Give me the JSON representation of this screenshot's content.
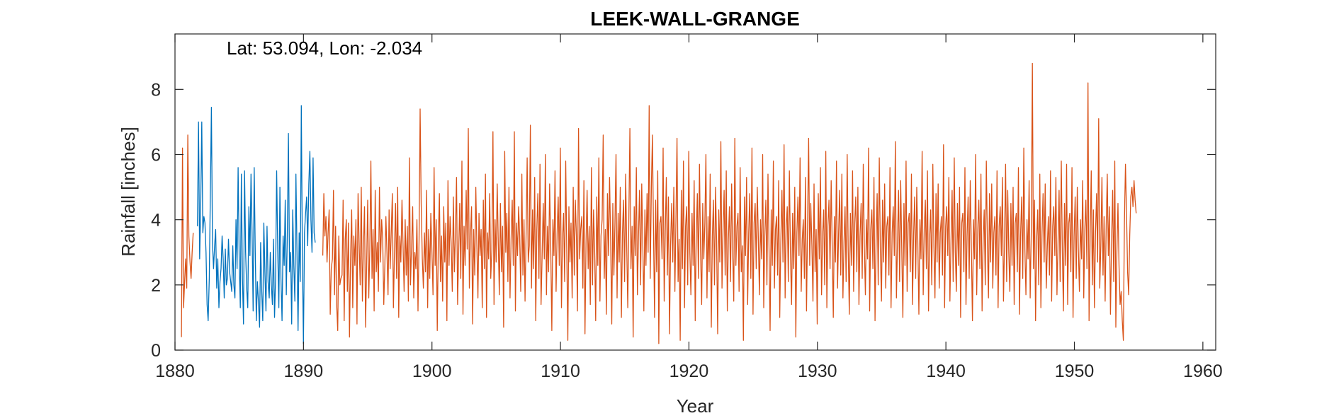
{
  "chart_data": {
    "type": "line",
    "title": "LEEK-WALL-GRANGE",
    "annotation": "Lat: 53.094, Lon: -2.034",
    "xlabel": "Year",
    "ylabel": "Rainfall [inches]",
    "xlim": [
      1880,
      1961
    ],
    "ylim": [
      0,
      9.7
    ],
    "xticks": [
      1880,
      1890,
      1900,
      1910,
      1920,
      1930,
      1940,
      1950,
      1960
    ],
    "yticks": [
      0,
      2,
      4,
      6,
      8
    ],
    "grid": false,
    "legend": "none",
    "resolution": "monthly",
    "series": [
      {
        "color": "#0072BD",
        "x_start": 1881.75,
        "x_step": 0.0833,
        "values": [
          3.8,
          7.0,
          2.8,
          4.4,
          7.0,
          3.6,
          4.1,
          3.9,
          3.0,
          1.4,
          0.9,
          2.2,
          4.8,
          7.45,
          3.3,
          2.5,
          3.2,
          3.7,
          1.9,
          2.8,
          1.3,
          2.1,
          2.5,
          3.5,
          2.8,
          1.6,
          3.1,
          2.0,
          2.2,
          3.4,
          2.4,
          2.1,
          1.8,
          3.2,
          2.0,
          1.6,
          4.0,
          2.5,
          5.6,
          2.7,
          1.3,
          5.4,
          2.2,
          0.8,
          5.5,
          3.0,
          1.9,
          1.3,
          4.4,
          2.9,
          5.4,
          3.6,
          1.2,
          5.6,
          3.0,
          0.9,
          2.1,
          1.5,
          0.7,
          3.3,
          1.8,
          0.9,
          3.9,
          2.4,
          1.2,
          3.8,
          2.1,
          1.6,
          3.0,
          2.0,
          1.4,
          3.4,
          1.0,
          2.2,
          5.5,
          3.1,
          1.3,
          5.0,
          2.2,
          0.9,
          3.5,
          2.6,
          4.6,
          1.7,
          3.6,
          6.65,
          2.4,
          3.0,
          0.8,
          4.3,
          2.6,
          1.5,
          5.4,
          3.0,
          0.6,
          3.6,
          2.1,
          7.5,
          2.9,
          0.2,
          3.6,
          4.2,
          4.7,
          3.2,
          5.1,
          6.1,
          4.0,
          3.0,
          5.9,
          3.6,
          3.3
        ]
      },
      {
        "color": "#D95319",
        "x_start": 1880.5,
        "x_step": 0.0833,
        "values": [
          0.4,
          6.2,
          1.3,
          2.1,
          2.8,
          1.9,
          6.6,
          3.5,
          2.7,
          2.2,
          3.0,
          3.6
        ]
      },
      {
        "color": "#D95319",
        "x_start": 1891.5,
        "x_step": 0.0833,
        "values": [
          2.9,
          4.8,
          3.5,
          4.1,
          2.7,
          3.6,
          4.3,
          1.1,
          2.5,
          2.8,
          4.9,
          1.7,
          3.8,
          1.4,
          0.6,
          3.5,
          2.0,
          2.2,
          2.3,
          4.6,
          0.9,
          3.4,
          4.0,
          1.8,
          3.9,
          0.4,
          2.8,
          4.3,
          1.3,
          3.5,
          2.6,
          4.0,
          0.8,
          4.8,
          3.3,
          2.0,
          5.0,
          1.5,
          3.2,
          4.4,
          0.7,
          2.6,
          4.6,
          1.6,
          3.1,
          5.8,
          2.2,
          3.7,
          1.2,
          4.9,
          2.4,
          3.3,
          1.8,
          5.0,
          2.7,
          4.0,
          3.4,
          1.4,
          2.6,
          4.1,
          3.0,
          1.7,
          4.3,
          2.5,
          3.6,
          4.8,
          1.3,
          3.0,
          4.5,
          2.2,
          5.0,
          1.0,
          3.5,
          2.7,
          4.6,
          3.2,
          1.8,
          4.0,
          2.3,
          3.8,
          1.5,
          5.9,
          2.0,
          3.2,
          4.4,
          1.6,
          3.0,
          2.5,
          4.0,
          1.2,
          3.4,
          7.4,
          4.5,
          2.8,
          1.9,
          3.6,
          2.4,
          4.9,
          1.3,
          3.7,
          2.2,
          4.2,
          3.0,
          1.7,
          5.6,
          2.6,
          4.0,
          0.6,
          3.3,
          4.8,
          2.1,
          3.5,
          1.5,
          4.4,
          2.7,
          3.9,
          0.9,
          5.2,
          2.6,
          4.1,
          3.3,
          1.8,
          4.7,
          2.4,
          3.6,
          5.3,
          1.4,
          3.0,
          4.5,
          2.2,
          5.8,
          1.1,
          3.8,
          2.6,
          4.9,
          3.1,
          6.8,
          1.9,
          3.5,
          4.4,
          0.8,
          3.7,
          2.3,
          5.0,
          3.2,
          1.6,
          4.2,
          2.9,
          3.7,
          1.3,
          4.6,
          2.5,
          5.4,
          1.0,
          3.6,
          2.8,
          4.8,
          2.2,
          3.1,
          6.7,
          1.4,
          4.0,
          2.7,
          5.1,
          3.3,
          1.7,
          4.5,
          2.4,
          3.8,
          0.7,
          6.1,
          3.0,
          4.2,
          2.1,
          5.0,
          1.6,
          3.4,
          4.6,
          2.6,
          6.7,
          1.2,
          3.9,
          2.9,
          4.4,
          3.5,
          1.8,
          5.4,
          2.3,
          4.0,
          1.5,
          3.6,
          5.9,
          2.7,
          3.2,
          6.9,
          1.9,
          4.3,
          2.5,
          5.3,
          0.9,
          3.7,
          4.8,
          2.2,
          5.7,
          1.4,
          3.0,
          4.5,
          2.8,
          6.0,
          1.7,
          3.8,
          2.4,
          5.1,
          3.3,
          0.6,
          4.0,
          2.9,
          5.5,
          1.8,
          3.6,
          4.7,
          2.6,
          6.2,
          1.3,
          3.4,
          4.2,
          2.1,
          5.8,
          3.0,
          0.3,
          4.4,
          2.7,
          3.9,
          1.6,
          5.0,
          2.3,
          4.6,
          3.5,
          1.2,
          6.8,
          2.8,
          3.7,
          4.1,
          1.9,
          5.2,
          0.5,
          3.3,
          4.9,
          2.5,
          3.8,
          1.4,
          5.6,
          2.0,
          4.3,
          3.1,
          0.9,
          4.7,
          2.6,
          5.9,
          1.5,
          3.5,
          4.0,
          6.6,
          2.2,
          3.7,
          1.1,
          4.8,
          2.9,
          5.3,
          3.4,
          0.8,
          4.5,
          2.3,
          3.9,
          6.0,
          1.6,
          4.2,
          2.7,
          5.0,
          1.0,
          3.6,
          4.6,
          2.1,
          5.4,
          3.2,
          1.3,
          4.0,
          6.8,
          2.5,
          3.8,
          0.4,
          4.4,
          2.9,
          5.6,
          1.7,
          3.5,
          4.9,
          2.0,
          5.1,
          3.3,
          1.2,
          4.3,
          2.6,
          4.8,
          3.0,
          7.5,
          2.2,
          5.0,
          6.6,
          3.7,
          1.0,
          4.6,
          2.4,
          5.5,
          0.2,
          3.9,
          4.1,
          2.8,
          6.2,
          1.5,
          3.6,
          5.3,
          2.3,
          4.7,
          0.5,
          3.2,
          4.5,
          2.7,
          5.0,
          1.8,
          4.0,
          6.5,
          2.1,
          3.4,
          0.3,
          4.9,
          2.5,
          5.8,
          1.3,
          3.8,
          4.4,
          2.0,
          6.1,
          3.0,
          1.7,
          4.2,
          2.6,
          5.2,
          0.9,
          3.6,
          4.8,
          2.2,
          5.7,
          3.1,
          1.4,
          4.5,
          2.8,
          3.9,
          6.0,
          1.6,
          4.1,
          2.4,
          5.4,
          0.7,
          3.5,
          4.6,
          2.0,
          5.0,
          3.3,
          0.5,
          4.3,
          2.7,
          6.4,
          1.9,
          3.7,
          4.9,
          2.3,
          5.5,
          1.2,
          3.4,
          4.4,
          2.1,
          5.1,
          3.0,
          1.5,
          6.5,
          2.6,
          3.8,
          4.2,
          1.8,
          5.6,
          2.4,
          3.2,
          0.3,
          4.7,
          2.9,
          5.3,
          1.4,
          3.6,
          4.8,
          2.2,
          6.2,
          1.1,
          3.9,
          4.5,
          2.5,
          5.0,
          3.4,
          1.7,
          4.0,
          2.8,
          6.0,
          1.3,
          3.5,
          4.6,
          2.0,
          5.4,
          3.1,
          0.6,
          4.3,
          2.6,
          5.8,
          1.9,
          3.7,
          4.1,
          2.3,
          5.2,
          1.0,
          3.3,
          4.9,
          2.7,
          6.3,
          1.6,
          3.8,
          4.4,
          2.1,
          5.5,
          3.0,
          1.4,
          4.2,
          2.5,
          5.0,
          0.4,
          3.6,
          4.7,
          2.9,
          5.9,
          1.8,
          3.4,
          4.0,
          2.2,
          5.3,
          1.2,
          3.9,
          6.5,
          2.6,
          4.5,
          3.2,
          1.5,
          5.1,
          2.4,
          3.7,
          0.8,
          4.8,
          2.8,
          5.6,
          1.7,
          3.5,
          4.3,
          2.0,
          6.1,
          1.3,
          3.8,
          4.6,
          2.5,
          5.2,
          3.1,
          1.0,
          4.1,
          2.7,
          5.8,
          1.9,
          3.6,
          4.9,
          2.3,
          5.4,
          1.6,
          3.3,
          4.4,
          2.1,
          6.0,
          3.0,
          1.1,
          4.2,
          2.6,
          5.5,
          1.8,
          3.9,
          4.7,
          2.4,
          5.0,
          1.4,
          3.5,
          4.5,
          2.2,
          5.7,
          3.2,
          1.7,
          4.0,
          2.8,
          6.2,
          1.2,
          3.7,
          4.3,
          2.5,
          5.3,
          0.9,
          3.4,
          4.8,
          2.0,
          5.9,
          3.1,
          1.5,
          4.6,
          2.7,
          5.1,
          1.9,
          3.8,
          4.1,
          2.3,
          5.6,
          1.3,
          3.6,
          4.4,
          2.9,
          6.4,
          1.6,
          3.3,
          4.9,
          2.1,
          5.2,
          3.0,
          1.0,
          4.5,
          2.6,
          5.8,
          1.8,
          3.9,
          4.2,
          2.4,
          5.4,
          1.4,
          3.5,
          4.7,
          2.2,
          5.0,
          3.3,
          1.1,
          4.0,
          2.8,
          6.1,
          1.7,
          3.7,
          4.6,
          2.5,
          5.5,
          1.2,
          3.4,
          4.3,
          2.0,
          5.7,
          3.2,
          1.6,
          4.8,
          2.7,
          5.1,
          1.9,
          3.6,
          4.1,
          2.3,
          6.3,
          1.3,
          3.8,
          4.4,
          2.9,
          5.3,
          1.5,
          3.3,
          4.9,
          2.1,
          5.9,
          3.0,
          1.8,
          4.5,
          2.6,
          5.0,
          1.0,
          3.9,
          4.2,
          2.4,
          5.6,
          1.4,
          3.5,
          4.7,
          2.2,
          5.2,
          3.1,
          0.9,
          4.0,
          2.8,
          6.0,
          1.7,
          3.7,
          4.6,
          2.5,
          5.4,
          1.2,
          3.4,
          4.3,
          2.0,
          5.8,
          3.3,
          1.6,
          4.8,
          2.7,
          5.1,
          1.9,
          3.6,
          4.1,
          2.3,
          5.5,
          1.3,
          3.8,
          4.4,
          2.9,
          5.3,
          1.5,
          3.3,
          5.7,
          2.1,
          4.9,
          3.0,
          1.8,
          4.5,
          2.6,
          5.0,
          1.4,
          3.9,
          4.2,
          2.4,
          5.6,
          1.1,
          3.5,
          4.7,
          2.2,
          6.2,
          3.1,
          1.7,
          4.0,
          2.8,
          5.2,
          1.6,
          3.7,
          8.8,
          2.5,
          4.6,
          0.9,
          3.4,
          4.3,
          2.0,
          5.4,
          1.3,
          3.6,
          4.8,
          2.7,
          5.1,
          1.9,
          3.2,
          4.1,
          2.3,
          5.5,
          1.5,
          3.8,
          4.4,
          2.9,
          5.3,
          1.7,
          3.3,
          4.9,
          2.1,
          5.8,
          3.0,
          1.2,
          4.5,
          2.6,
          5.7,
          1.4,
          3.9,
          4.2,
          2.4,
          5.6,
          1.0,
          3.5,
          4.7,
          2.2,
          5.0,
          3.1,
          1.8,
          4.0,
          2.8,
          5.2,
          1.6,
          3.7,
          4.6,
          2.5,
          8.2,
          0.9,
          3.4,
          5.5,
          2.0,
          4.3,
          1.3,
          3.6,
          4.8,
          2.7,
          7.1,
          1.9,
          3.2,
          5.3,
          2.3,
          4.1,
          1.5,
          3.8,
          5.4,
          2.9,
          4.4,
          1.1,
          3.3,
          4.9,
          2.1,
          5.8,
          0.7,
          3.0,
          4.5,
          2.6,
          1.4,
          1.8,
          0.9,
          0.3,
          3.9,
          5.7,
          4.2,
          2.4,
          1.7,
          3.5,
          4.7,
          5.0,
          4.4,
          5.2,
          4.6,
          4.2
        ]
      }
    ]
  }
}
